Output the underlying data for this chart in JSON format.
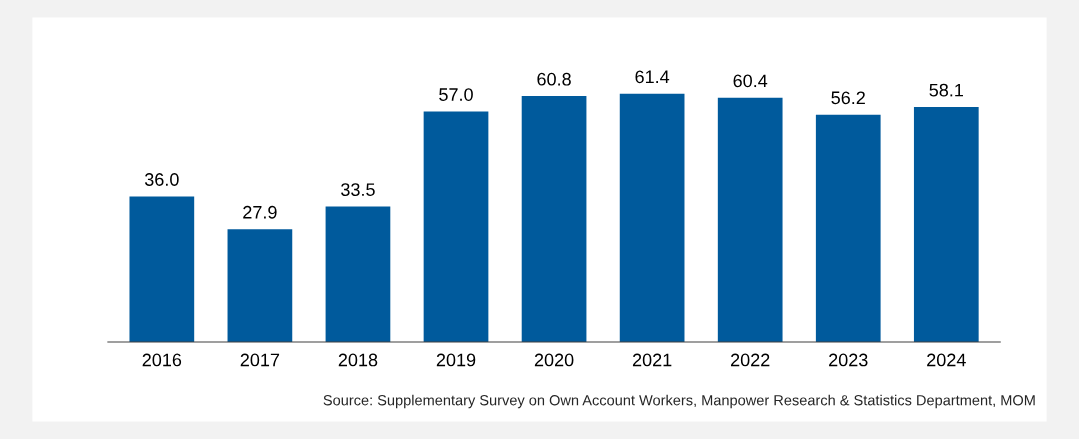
{
  "chart_data": {
    "type": "bar",
    "categories": [
      "2016",
      "2017",
      "2018",
      "2019",
      "2020",
      "2021",
      "2022",
      "2023",
      "2024"
    ],
    "values": [
      36.0,
      27.9,
      33.5,
      57.0,
      60.8,
      61.4,
      60.4,
      56.2,
      58.1
    ],
    "color": "#005a9c",
    "value_labels": [
      "36.0",
      "27.9",
      "33.5",
      "57.0",
      "60.8",
      "61.4",
      "60.4",
      "56.2",
      "58.1"
    ],
    "grid": false,
    "annotations": [
      "Source: Supplementary Survey on Own Account Workers, Manpower Research & Statistics Department, MOM"
    ]
  }
}
